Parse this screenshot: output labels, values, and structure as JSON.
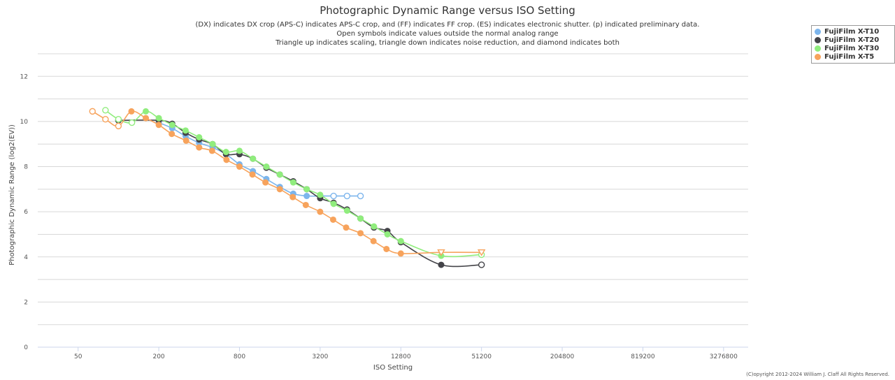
{
  "chart_data": {
    "type": "line",
    "title": "Photographic Dynamic Range versus ISO Setting",
    "subtitle": [
      "(DX) indicates DX crop (APS-C) indicates APS-C crop, and (FF) indicates FF crop. (ES) indicates electronic shutter. (p) indicated preliminary data.",
      "Open symbols indicate values outside the normal analog range",
      "Triangle up indicates scaling, triangle down indicates noise reduction, and diamond indicates both"
    ],
    "xlabel": "ISO Setting",
    "ylabel": "Photographic Dynamic Range (log2(EV))",
    "x_scale": "log2",
    "xlim": [
      25,
      5000000
    ],
    "ylim": [
      0,
      13
    ],
    "x_ticks": [
      50,
      200,
      800,
      3200,
      12800,
      51200,
      204800,
      819200,
      3276800
    ],
    "x_tick_labels": [
      "50",
      "200",
      "800",
      "3200",
      "12800",
      "51200",
      "204800",
      "819200",
      "3276800"
    ],
    "y_ticks": [
      0,
      2,
      4,
      6,
      8,
      10,
      12
    ],
    "y_tick_labels": [
      "0",
      "2",
      "4",
      "6",
      "8",
      "10",
      "12"
    ],
    "grid": true,
    "legend_position": "top-right",
    "series": [
      {
        "name": "FujiFilm X-T10",
        "color": "#7cb5ec",
        "points": [
          {
            "x": 200,
            "y": 9.95,
            "open": false
          },
          {
            "x": 252,
            "y": 9.7,
            "open": false
          },
          {
            "x": 317,
            "y": 9.35,
            "open": false
          },
          {
            "x": 400,
            "y": 9.05,
            "open": false
          },
          {
            "x": 504,
            "y": 8.85,
            "open": false
          },
          {
            "x": 635,
            "y": 8.55,
            "open": false
          },
          {
            "x": 800,
            "y": 8.1,
            "open": false
          },
          {
            "x": 1008,
            "y": 7.8,
            "open": false
          },
          {
            "x": 1270,
            "y": 7.45,
            "open": false
          },
          {
            "x": 1600,
            "y": 7.1,
            "open": false
          },
          {
            "x": 2016,
            "y": 6.8,
            "open": false
          },
          {
            "x": 2540,
            "y": 6.7,
            "open": false
          },
          {
            "x": 3200,
            "y": 6.7,
            "open": true
          },
          {
            "x": 4032,
            "y": 6.7,
            "open": true
          },
          {
            "x": 5080,
            "y": 6.7,
            "open": true
          },
          {
            "x": 6400,
            "y": 6.7,
            "open": true
          }
        ]
      },
      {
        "name": "FujiFilm X-T20",
        "color": "#434348",
        "points": [
          {
            "x": 100,
            "y": 10.05,
            "open": true
          },
          {
            "x": 200,
            "y": 10.05,
            "open": false
          },
          {
            "x": 252,
            "y": 9.9,
            "open": false
          },
          {
            "x": 317,
            "y": 9.5,
            "open": false
          },
          {
            "x": 400,
            "y": 9.2,
            "open": false
          },
          {
            "x": 504,
            "y": 9.0,
            "open": false
          },
          {
            "x": 635,
            "y": 8.55,
            "open": false
          },
          {
            "x": 800,
            "y": 8.55,
            "open": false
          },
          {
            "x": 1008,
            "y": 8.35,
            "open": false
          },
          {
            "x": 1270,
            "y": 7.95,
            "open": false
          },
          {
            "x": 1600,
            "y": 7.65,
            "open": false
          },
          {
            "x": 2016,
            "y": 7.35,
            "open": false
          },
          {
            "x": 2540,
            "y": 7.0,
            "open": false
          },
          {
            "x": 3200,
            "y": 6.6,
            "open": false
          },
          {
            "x": 4032,
            "y": 6.4,
            "open": false
          },
          {
            "x": 5080,
            "y": 6.1,
            "open": false
          },
          {
            "x": 6400,
            "y": 5.7,
            "open": false
          },
          {
            "x": 8063,
            "y": 5.3,
            "open": false
          },
          {
            "x": 10159,
            "y": 5.15,
            "open": false
          },
          {
            "x": 12800,
            "y": 4.65,
            "open": false
          },
          {
            "x": 25600,
            "y": 3.65,
            "open": false
          },
          {
            "x": 51200,
            "y": 3.65,
            "open": true
          }
        ]
      },
      {
        "name": "FujiFilm X-T30",
        "color": "#90ed7d",
        "points": [
          {
            "x": 80,
            "y": 10.5,
            "open": true
          },
          {
            "x": 100,
            "y": 10.1,
            "open": true
          },
          {
            "x": 126,
            "y": 9.95,
            "open": true
          },
          {
            "x": 160,
            "y": 10.45,
            "open": false
          },
          {
            "x": 200,
            "y": 10.15,
            "open": false
          },
          {
            "x": 252,
            "y": 9.85,
            "open": false
          },
          {
            "x": 317,
            "y": 9.6,
            "open": false
          },
          {
            "x": 400,
            "y": 9.3,
            "open": false
          },
          {
            "x": 504,
            "y": 9.0,
            "open": false
          },
          {
            "x": 635,
            "y": 8.65,
            "open": false
          },
          {
            "x": 800,
            "y": 8.7,
            "open": false
          },
          {
            "x": 1008,
            "y": 8.35,
            "open": false
          },
          {
            "x": 1270,
            "y": 8.0,
            "open": false
          },
          {
            "x": 1600,
            "y": 7.65,
            "open": false
          },
          {
            "x": 2016,
            "y": 7.3,
            "open": false
          },
          {
            "x": 2540,
            "y": 7.0,
            "open": false
          },
          {
            "x": 3200,
            "y": 6.75,
            "open": false
          },
          {
            "x": 4032,
            "y": 6.35,
            "open": false
          },
          {
            "x": 5080,
            "y": 6.05,
            "open": false
          },
          {
            "x": 6400,
            "y": 5.7,
            "open": false
          },
          {
            "x": 8063,
            "y": 5.35,
            "open": false
          },
          {
            "x": 10159,
            "y": 5.0,
            "open": false
          },
          {
            "x": 12800,
            "y": 4.7,
            "open": false
          },
          {
            "x": 25600,
            "y": 4.05,
            "open": false
          },
          {
            "x": 51200,
            "y": 4.1,
            "open": true
          }
        ]
      },
      {
        "name": "FujiFilm X-T5",
        "color": "#f7a35c",
        "points": [
          {
            "x": 64,
            "y": 10.45,
            "open": true
          },
          {
            "x": 80,
            "y": 10.1,
            "open": true
          },
          {
            "x": 100,
            "y": 9.8,
            "open": true
          },
          {
            "x": 125,
            "y": 10.45,
            "open": false
          },
          {
            "x": 160,
            "y": 10.15,
            "open": false
          },
          {
            "x": 200,
            "y": 9.85,
            "open": false
          },
          {
            "x": 250,
            "y": 9.45,
            "open": false
          },
          {
            "x": 320,
            "y": 9.15,
            "open": false
          },
          {
            "x": 400,
            "y": 8.85,
            "open": false
          },
          {
            "x": 500,
            "y": 8.7,
            "open": false
          },
          {
            "x": 640,
            "y": 8.3,
            "open": false
          },
          {
            "x": 800,
            "y": 8.0,
            "open": false
          },
          {
            "x": 1000,
            "y": 7.65,
            "open": false
          },
          {
            "x": 1250,
            "y": 7.3,
            "open": false
          },
          {
            "x": 1600,
            "y": 7.0,
            "open": false
          },
          {
            "x": 2000,
            "y": 6.65,
            "open": false
          },
          {
            "x": 2500,
            "y": 6.3,
            "open": false
          },
          {
            "x": 3200,
            "y": 6.0,
            "open": false
          },
          {
            "x": 4000,
            "y": 5.65,
            "open": false
          },
          {
            "x": 5000,
            "y": 5.3,
            "open": false
          },
          {
            "x": 6400,
            "y": 5.05,
            "open": false
          },
          {
            "x": 8000,
            "y": 4.7,
            "open": false
          },
          {
            "x": 10000,
            "y": 4.35,
            "open": false
          },
          {
            "x": 12800,
            "y": 4.15,
            "open": false
          },
          {
            "x": 25600,
            "y": 4.2,
            "open": true,
            "marker": "triangle-down"
          },
          {
            "x": 51200,
            "y": 4.2,
            "open": true,
            "marker": "triangle-down"
          }
        ]
      }
    ],
    "copyright": "(C)opyright 2012-2024 William J. Claff All Rights Reserved."
  }
}
